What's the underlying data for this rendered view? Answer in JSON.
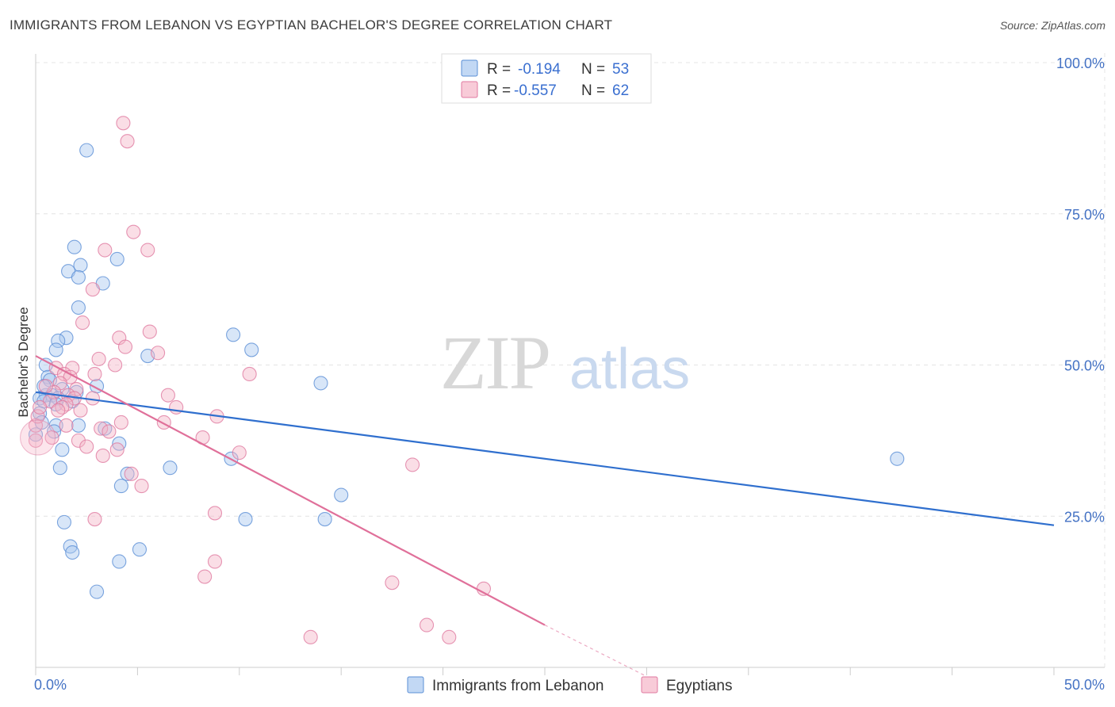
{
  "header": {
    "title": "IMMIGRANTS FROM LEBANON VS EGYPTIAN BACHELOR'S DEGREE CORRELATION CHART",
    "source": "Source: ZipAtlas.com"
  },
  "watermark": {
    "zip": "ZIP",
    "atlas": "atlas"
  },
  "legend_top": [
    {
      "r_label": "R =",
      "r_value": "-0.194",
      "n_label": "N =",
      "n_value": "53",
      "color": "#a8c8f0"
    },
    {
      "r_label": "R =",
      "r_value": "-0.557",
      "n_label": "N =",
      "n_value": "62",
      "color": "#f5b5c8"
    }
  ],
  "colors": {
    "blue_fill": "#a8c8f0",
    "blue_stroke": "#5b8fd6",
    "blue_line": "#2f6fce",
    "pink_fill": "#f5b5c8",
    "pink_stroke": "#e07aa0",
    "pink_line": "#e0709a",
    "grid": "#e4e4e4",
    "axis": "#cccccc",
    "tick_text": "#4472c4"
  },
  "chart_data": {
    "type": "scatter",
    "title": "IMMIGRANTS FROM LEBANON VS EGYPTIAN BACHELOR'S DEGREE CORRELATION CHART",
    "xlabel": "",
    "ylabel": "Bachelor's Degree",
    "xlim": [
      0,
      50
    ],
    "ylim": [
      0,
      100
    ],
    "x_tick_labels": [
      "0.0%",
      "50.0%"
    ],
    "y_tick_labels": [
      "25.0%",
      "50.0%",
      "75.0%",
      "100.0%"
    ],
    "y_ticks": [
      25,
      50,
      75,
      100
    ],
    "grid": true,
    "legend_position": "bottom",
    "series": [
      {
        "name": "Immigrants from Lebanon",
        "r": -0.194,
        "n": 53,
        "trend": {
          "x": [
            0,
            50
          ],
          "y": [
            45.5,
            23.5
          ]
        },
        "points": [
          [
            2.5,
            85.5
          ],
          [
            1.9,
            69.5
          ],
          [
            4.0,
            67.5
          ],
          [
            2.2,
            66.5
          ],
          [
            1.6,
            65.5
          ],
          [
            2.1,
            64.5
          ],
          [
            3.3,
            63.5
          ],
          [
            2.1,
            59.5
          ],
          [
            9.7,
            55.0
          ],
          [
            1.5,
            54.5
          ],
          [
            1.1,
            54.0
          ],
          [
            1.0,
            52.5
          ],
          [
            10.6,
            52.5
          ],
          [
            5.5,
            51.5
          ],
          [
            0.5,
            50.0
          ],
          [
            0.6,
            48.0
          ],
          [
            0.7,
            47.5
          ],
          [
            14.0,
            47.0
          ],
          [
            3.0,
            46.5
          ],
          [
            1.3,
            46.0
          ],
          [
            2.0,
            45.5
          ],
          [
            0.5,
            45.0
          ],
          [
            0.8,
            45.0
          ],
          [
            1.1,
            44.5
          ],
          [
            0.2,
            44.5
          ],
          [
            1.8,
            44.0
          ],
          [
            0.4,
            44.0
          ],
          [
            1.0,
            40.0
          ],
          [
            2.1,
            40.0
          ],
          [
            3.4,
            39.5
          ],
          [
            0.9,
            39.0
          ],
          [
            4.1,
            37.0
          ],
          [
            1.3,
            36.0
          ],
          [
            9.6,
            34.5
          ],
          [
            6.6,
            33.0
          ],
          [
            1.2,
            33.0
          ],
          [
            4.5,
            32.0
          ],
          [
            4.2,
            30.0
          ],
          [
            15.0,
            28.5
          ],
          [
            1.4,
            24.0
          ],
          [
            10.3,
            24.5
          ],
          [
            14.2,
            24.5
          ],
          [
            1.7,
            20.0
          ],
          [
            5.1,
            19.5
          ],
          [
            1.8,
            19.0
          ],
          [
            4.1,
            17.5
          ],
          [
            3.0,
            12.5
          ],
          [
            42.3,
            34.5
          ],
          [
            0.2,
            42.0
          ],
          [
            1.0,
            43.5
          ],
          [
            0.4,
            46.5
          ],
          [
            0.0,
            38.5
          ],
          [
            0.3,
            40.5
          ]
        ]
      },
      {
        "name": "Egyptians",
        "r": -0.557,
        "n": 62,
        "trend": {
          "x": [
            0,
            25
          ],
          "y": [
            51.5,
            7.0
          ]
        },
        "trend_dashed": {
          "x": [
            25,
            30
          ],
          "y": [
            7.0,
            -1.5
          ]
        },
        "points": [
          [
            4.3,
            90.0
          ],
          [
            4.5,
            87.0
          ],
          [
            4.8,
            72.0
          ],
          [
            3.4,
            69.0
          ],
          [
            5.5,
            69.0
          ],
          [
            2.8,
            62.5
          ],
          [
            2.3,
            57.0
          ],
          [
            5.6,
            55.5
          ],
          [
            4.1,
            54.5
          ],
          [
            4.4,
            53.0
          ],
          [
            6.0,
            52.0
          ],
          [
            3.1,
            51.0
          ],
          [
            3.9,
            50.0
          ],
          [
            1.0,
            49.5
          ],
          [
            1.8,
            49.5
          ],
          [
            1.4,
            48.5
          ],
          [
            2.9,
            48.5
          ],
          [
            10.5,
            48.5
          ],
          [
            1.7,
            48.0
          ],
          [
            1.2,
            47.0
          ],
          [
            2.0,
            46.0
          ],
          [
            0.9,
            45.5
          ],
          [
            6.5,
            45.0
          ],
          [
            1.6,
            45.0
          ],
          [
            1.9,
            44.5
          ],
          [
            2.8,
            44.5
          ],
          [
            0.7,
            44.0
          ],
          [
            1.5,
            43.5
          ],
          [
            1.3,
            43.0
          ],
          [
            6.9,
            43.0
          ],
          [
            1.1,
            42.5
          ],
          [
            2.2,
            42.5
          ],
          [
            8.9,
            41.5
          ],
          [
            6.3,
            40.5
          ],
          [
            4.2,
            40.5
          ],
          [
            1.5,
            40.0
          ],
          [
            3.2,
            39.5
          ],
          [
            3.6,
            39.0
          ],
          [
            0.8,
            38.0
          ],
          [
            2.1,
            37.5
          ],
          [
            8.2,
            38.0
          ],
          [
            2.5,
            36.5
          ],
          [
            4.0,
            36.0
          ],
          [
            10.0,
            35.5
          ],
          [
            3.3,
            35.0
          ],
          [
            18.5,
            33.5
          ],
          [
            4.7,
            32.0
          ],
          [
            5.2,
            30.0
          ],
          [
            8.8,
            25.5
          ],
          [
            2.9,
            24.5
          ],
          [
            8.8,
            17.5
          ],
          [
            8.3,
            15.0
          ],
          [
            17.5,
            14.0
          ],
          [
            22.0,
            13.0
          ],
          [
            13.5,
            5.0
          ],
          [
            19.2,
            7.0
          ],
          [
            20.3,
            5.0
          ],
          [
            0.0,
            40.0
          ],
          [
            0.1,
            41.5
          ],
          [
            0.2,
            43.0
          ],
          [
            0.0,
            37.5
          ],
          [
            0.5,
            46.5
          ]
        ]
      }
    ]
  }
}
